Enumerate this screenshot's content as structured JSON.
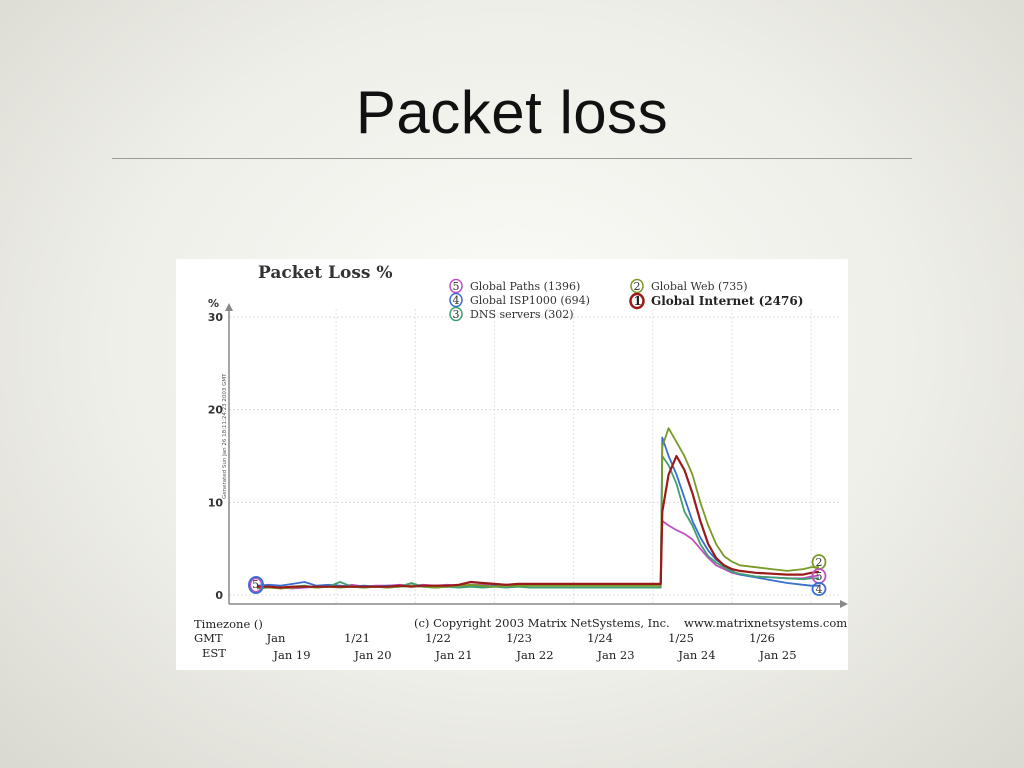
{
  "slide": {
    "title": "Packet loss"
  },
  "chart_data": {
    "type": "line",
    "title": "Packet Loss %",
    "ylabel": "%",
    "side_text": "Generated Sun Jan 26 18:11:24:23 2003 GMT",
    "ylim": [
      0,
      30
    ],
    "yticks": [
      "0",
      "10",
      "20",
      "30"
    ],
    "grid": true,
    "legend_position": "top",
    "copyright": "(c) Copyright 2003 Matrix NetSystems, Inc.",
    "website": "www.matrixnetsystems.com",
    "timezone_label": "Timezone ()",
    "gmt_label": "GMT",
    "est_label": "EST",
    "gmt_ticks": [
      "Jan",
      "1/21",
      "1/22",
      "1/23",
      "1/24",
      "1/25",
      "1/26"
    ],
    "est_ticks": [
      "Jan 19",
      "Jan 20",
      "Jan 21",
      "Jan 22",
      "Jan 23",
      "Jan 24",
      "Jan 25"
    ],
    "x_days": [
      0,
      1,
      2,
      3,
      4,
      5,
      6,
      7
    ],
    "series": [
      {
        "id": "5",
        "name": "Global Paths (1396)",
        "color": "#c050c0",
        "values": [
          0.9,
          0.8,
          0.8,
          0.7,
          0.8,
          0.9,
          1.0,
          0.9,
          1.1,
          0.9,
          1.0,
          1.0,
          1.1,
          1.0,
          1.1,
          1.0,
          1.1,
          1.0,
          1.1,
          1.1,
          1.2,
          1.1,
          1.2,
          1.2,
          1.2,
          8.0,
          7.5,
          7.0,
          6.6,
          6.0,
          5.0,
          4.0,
          3.2,
          2.8,
          2.4,
          2.2,
          2.0,
          1.9,
          1.8,
          1.8,
          2.0,
          2.1
        ]
      },
      {
        "id": "4",
        "name": "Global ISP1000 (694)",
        "color": "#3a6fd0",
        "values": [
          1.0,
          1.1,
          1.0,
          1.2,
          1.4,
          1.0,
          1.1,
          1.0,
          0.9,
          1.0,
          0.9,
          1.0,
          0.9,
          1.0,
          0.9,
          1.0,
          0.9,
          1.0,
          1.0,
          0.9,
          1.0,
          1.0,
          1.0,
          1.0,
          1.0,
          17.0,
          15.0,
          13.0,
          10.5,
          8.0,
          6.2,
          4.8,
          3.8,
          3.2,
          2.6,
          2.2,
          1.9,
          1.6,
          1.3,
          1.1,
          1.0,
          1.0
        ]
      },
      {
        "id": "3",
        "name": "DNS servers (302)",
        "color": "#40a070",
        "values": [
          0.8,
          0.9,
          0.8,
          0.9,
          1.0,
          0.8,
          0.9,
          1.4,
          0.9,
          0.8,
          0.9,
          0.8,
          0.9,
          1.3,
          0.9,
          0.8,
          0.9,
          0.8,
          0.9,
          0.8,
          0.9,
          0.8,
          0.9,
          0.8,
          0.8,
          15.0,
          14.0,
          12.0,
          9.0,
          7.5,
          5.5,
          4.2,
          3.5,
          3.0,
          2.5,
          2.3,
          2.0,
          1.9,
          1.8,
          1.7,
          1.8,
          1.8
        ]
      },
      {
        "id": "2",
        "name": "Global Web (735)",
        "color": "#7a9a28",
        "values": [
          0.7,
          0.8,
          0.7,
          0.8,
          0.9,
          0.8,
          0.9,
          0.8,
          0.9,
          0.8,
          0.9,
          0.8,
          0.9,
          1.0,
          0.9,
          0.8,
          0.9,
          1.0,
          1.1,
          1.0,
          0.9,
          1.0,
          1.0,
          1.0,
          1.0,
          16.0,
          18.0,
          16.5,
          15.0,
          13.0,
          10.0,
          7.5,
          5.5,
          4.2,
          3.6,
          3.2,
          3.0,
          2.8,
          2.6,
          2.8,
          3.0,
          3.0
        ]
      },
      {
        "id": "1",
        "name": "Global Internet (2476)",
        "color": "#9a1a1a",
        "values": [
          0.9,
          0.9,
          0.8,
          0.9,
          0.9,
          0.9,
          0.9,
          0.9,
          0.9,
          0.9,
          0.9,
          0.9,
          1.0,
          0.9,
          1.0,
          1.0,
          1.0,
          1.1,
          1.4,
          1.3,
          1.2,
          1.1,
          1.2,
          1.2,
          1.2,
          9.0,
          13.0,
          15.0,
          13.5,
          11.0,
          8.0,
          5.5,
          4.0,
          3.2,
          2.8,
          2.6,
          2.4,
          2.3,
          2.2,
          2.2,
          2.4,
          2.5
        ]
      }
    ],
    "x_positions": [
      0.0,
      0.15,
      0.3,
      0.45,
      0.6,
      0.75,
      0.9,
      1.05,
      1.2,
      1.35,
      1.5,
      1.65,
      1.8,
      1.95,
      2.1,
      2.25,
      2.4,
      2.55,
      2.7,
      2.85,
      3.0,
      3.15,
      3.3,
      3.45,
      5.1,
      5.12,
      5.2,
      5.3,
      5.4,
      5.5,
      5.6,
      5.7,
      5.8,
      5.9,
      6.0,
      6.1,
      6.3,
      6.5,
      6.7,
      6.9,
      7.0,
      7.1
    ],
    "start_marker": "5",
    "end_markers": [
      "2",
      "5",
      "4"
    ]
  }
}
